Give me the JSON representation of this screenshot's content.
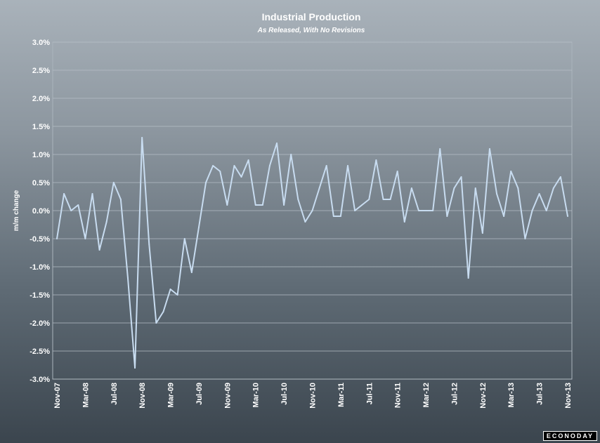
{
  "chart_data": {
    "type": "line",
    "title": "Industrial Production",
    "subtitle": "As Released, With No Revisions",
    "ylabel": "m/m change",
    "ylim": [
      -3.0,
      3.0
    ],
    "yticks": [
      "3.0%",
      "2.5%",
      "2.0%",
      "1.5%",
      "1.0%",
      "0.5%",
      "0.0%",
      "-0.5%",
      "-1.0%",
      "-1.5%",
      "-2.0%",
      "-2.5%",
      "-3.0%"
    ],
    "xtick_labels": [
      "Nov-07",
      "Mar-08",
      "Jul-08",
      "Nov-08",
      "Mar-09",
      "Jul-09",
      "Nov-09",
      "Mar-10",
      "Jul-10",
      "Nov-10",
      "Mar-11",
      "Jul-11",
      "Nov-11",
      "Mar-12",
      "Jul-12",
      "Nov-12",
      "Mar-13",
      "Jul-13",
      "Nov-13"
    ],
    "grid": true,
    "line_color": "#c8dcf0",
    "series": [
      {
        "x": [
          "Nov-07",
          "Dec-07",
          "Jan-08",
          "Feb-08",
          "Mar-08",
          "Apr-08",
          "May-08",
          "Jun-08",
          "Jul-08",
          "Aug-08",
          "Sep-08",
          "Oct-08",
          "Nov-08",
          "Dec-08",
          "Jan-09",
          "Feb-09",
          "Mar-09",
          "Apr-09",
          "May-09",
          "Jun-09",
          "Jul-09",
          "Aug-09",
          "Sep-09",
          "Oct-09",
          "Nov-09",
          "Dec-09",
          "Jan-10",
          "Feb-10",
          "Mar-10",
          "Apr-10",
          "May-10",
          "Jun-10",
          "Jul-10",
          "Aug-10",
          "Sep-10",
          "Oct-10",
          "Nov-10",
          "Dec-10",
          "Jan-11",
          "Feb-11",
          "Mar-11",
          "Apr-11",
          "May-11",
          "Jun-11",
          "Jul-11",
          "Aug-11",
          "Sep-11",
          "Oct-11",
          "Nov-11",
          "Dec-11",
          "Jan-12",
          "Feb-12",
          "Mar-12",
          "Apr-12",
          "May-12",
          "Jun-12",
          "Jul-12",
          "Aug-12",
          "Sep-12",
          "Oct-12",
          "Nov-12",
          "Dec-12",
          "Jan-13",
          "Feb-13",
          "Mar-13",
          "Apr-13",
          "May-13",
          "Jun-13",
          "Jul-13",
          "Aug-13",
          "Sep-13",
          "Oct-13",
          "Nov-13"
        ],
        "values": [
          -0.5,
          0.3,
          0.0,
          0.1,
          -0.5,
          0.3,
          -0.7,
          -0.2,
          0.5,
          0.2,
          -1.2,
          -2.8,
          1.3,
          -0.6,
          -2.0,
          -1.8,
          -1.4,
          -1.5,
          -0.5,
          -1.1,
          -0.3,
          0.5,
          0.8,
          0.7,
          0.1,
          0.8,
          0.6,
          0.9,
          0.1,
          0.1,
          0.8,
          1.2,
          0.1,
          1.0,
          0.2,
          -0.2,
          0.0,
          0.4,
          0.8,
          -0.1,
          -0.1,
          0.8,
          0.0,
          0.1,
          0.2,
          0.9,
          0.2,
          0.2,
          0.7,
          -0.2,
          0.4,
          0.0,
          0.0,
          0.0,
          1.1,
          -0.1,
          0.4,
          0.6,
          -1.2,
          0.4,
          -0.4,
          1.1,
          0.3,
          -0.1,
          0.7,
          0.4,
          -0.5,
          0.0,
          0.3,
          0.0,
          0.4,
          0.6,
          -0.1
        ]
      }
    ]
  },
  "brand": "ECONODAY"
}
